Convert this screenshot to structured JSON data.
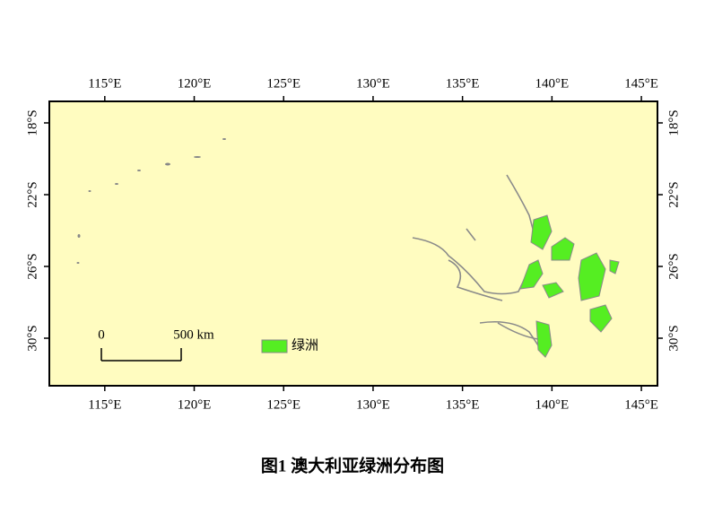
{
  "map": {
    "xlim": [
      111.9,
      145.9
    ],
    "xticks": [
      {
        "value": 115,
        "label": "115°E"
      },
      {
        "value": 120,
        "label": "120°E"
      },
      {
        "value": 125,
        "label": "125°E"
      },
      {
        "value": 130,
        "label": "130°E"
      },
      {
        "value": 135,
        "label": "135°E"
      },
      {
        "value": 140,
        "label": "140°E"
      },
      {
        "value": 145,
        "label": "145°E"
      }
    ],
    "ylim": [
      -32.65,
      -16.8
    ],
    "yticks": [
      {
        "value": -18,
        "label": "18°S"
      },
      {
        "value": -22,
        "label": "22°S"
      },
      {
        "value": -26,
        "label": "26°S"
      },
      {
        "value": -30,
        "label": "30°S"
      }
    ],
    "scale_bar": {
      "start_label": "0",
      "end_label": "500 km"
    },
    "legend": {
      "label": "绿洲",
      "color": "#55ee22"
    }
  },
  "caption": "图1  澳大利亚绿洲分布图"
}
